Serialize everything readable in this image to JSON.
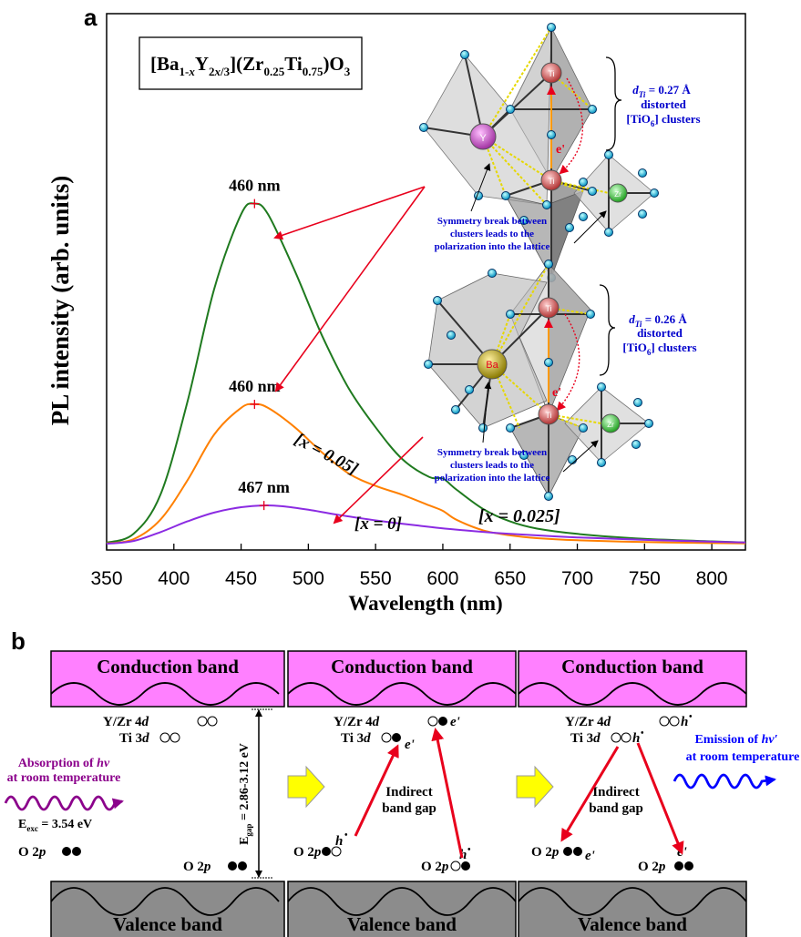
{
  "panel_a": {
    "label": "a",
    "formula": {
      "p1": "[Ba",
      "s1": "1-",
      "s1i": "x",
      "p2": "Y",
      "s2": "2",
      "s2i": "x",
      "s2b": "/3",
      "p3": "](Zr",
      "s3": "0.25",
      "p4": "Ti",
      "s4": "0.75",
      "p5": ")O",
      "s5": "3"
    },
    "peak_labels": [
      "460 nm",
      "460 nm",
      "467 nm"
    ],
    "series_labels": [
      "[x = 0.05]",
      "[x = 0]",
      "[x = 0.025]"
    ],
    "struct_top": {
      "atoms": {
        "y": "Y",
        "ti": "Ti",
        "zr": "Zr",
        "e": "e'"
      },
      "d_label": "d",
      "d_sub": "Ti",
      "d_value": " = 0.27 Å",
      "distorted": "distorted",
      "clusters_pre": "[TiO",
      "clusters_sub": "6",
      "clusters_post": "] clusters",
      "caption": [
        "Symmetry break between",
        "clusters leads to the",
        "polarization into the lattice"
      ]
    },
    "struct_bottom": {
      "atoms": {
        "ba": "Ba",
        "ti": "Ti",
        "zr": "Zr",
        "e": "e'"
      },
      "d_label": "d",
      "d_sub": "Ti",
      "d_value": " = 0.26 Å",
      "distorted": "distorted",
      "clusters_pre": "[TiO",
      "clusters_sub": "6",
      "clusters_post": "] clusters",
      "caption": [
        "Symmetry break between",
        "clusters leads to the",
        "polarization into the lattice"
      ]
    }
  },
  "chart_data": {
    "type": "line",
    "xlabel": "Wavelength (nm)",
    "ylabel": "PL intensity (arb. units)",
    "xlim": [
      350,
      825
    ],
    "xticks": [
      350,
      400,
      450,
      500,
      550,
      600,
      650,
      700,
      750,
      800
    ],
    "series": [
      {
        "name": "[x = 0.025]",
        "color": "#1f7a1f",
        "x": [
          350,
          370,
          390,
          410,
          430,
          450,
          460,
          470,
          490,
          510,
          530,
          550,
          570,
          590,
          600,
          610,
          630,
          650,
          670,
          700,
          750,
          800,
          825
        ],
        "y": [
          0.5,
          3,
          14,
          40,
          72,
          93,
          96,
          93,
          77,
          59,
          44,
          33,
          24,
          19,
          18.6,
          15.5,
          10,
          6.5,
          4.5,
          3,
          1.6,
          0.9,
          0.6
        ]
      },
      {
        "name": "[x = 0.05]",
        "color": "#ff8000",
        "x": [
          350,
          370,
          390,
          410,
          430,
          450,
          460,
          470,
          490,
          510,
          530,
          550,
          570,
          590,
          600,
          610,
          630,
          650,
          670,
          700,
          750,
          800,
          825
        ],
        "y": [
          0.3,
          1.5,
          7,
          18,
          31,
          38.5,
          39.5,
          38.5,
          33,
          26,
          20,
          16.5,
          14,
          11,
          9.5,
          7,
          4,
          2.6,
          1.8,
          1.2,
          0.7,
          0.4,
          0.3
        ]
      },
      {
        "name": "[x = 0]",
        "color": "#8b2be2",
        "x": [
          350,
          370,
          390,
          410,
          430,
          450,
          467,
          480,
          500,
          520,
          550,
          580,
          610,
          650,
          700,
          750,
          800,
          825
        ],
        "y": [
          0.2,
          1,
          3.5,
          6.5,
          9,
          10.5,
          11,
          10.8,
          9.8,
          8.5,
          6.8,
          5.4,
          4.2,
          3,
          2,
          1.3,
          0.8,
          0.6
        ]
      }
    ],
    "peaks": [
      {
        "x": 460,
        "y": 96,
        "label": "460 nm"
      },
      {
        "x": 460,
        "y": 39.5,
        "label": "460 nm"
      },
      {
        "x": 467,
        "y": 11,
        "label": "467 nm"
      }
    ]
  },
  "panel_b": {
    "label": "b",
    "conduction_band": "Conduction band",
    "valence_band": "Valence band",
    "p1": {
      "yzr": "Y/Zr 4",
      "d": "d",
      "ti": "Ti 3",
      "o2p": "O 2",
      "p": "p"
    },
    "p2": {
      "yzr": "Y/Zr 4",
      "d": "d",
      "ti": "Ti 3",
      "indirect": [
        "Indirect",
        "band gap"
      ],
      "o2p": "O 2",
      "p": "p",
      "e": "e'",
      "h": "h"
    },
    "p3": {
      "yzr": "Y/Zr 4",
      "d": "d",
      "ti": "Ti 3",
      "indirect": [
        "Indirect",
        "band gap"
      ],
      "o2p": "O 2",
      "p": "p",
      "e": "e'",
      "h": "h"
    },
    "absorption": [
      "Absorption of ",
      "hν",
      "at room temperature"
    ],
    "eexc": [
      "E",
      "exc",
      " = 3.54 eV"
    ],
    "o2p_left": [
      "O 2",
      "p"
    ],
    "egap": [
      "E",
      "gap",
      " = 2.86-3.12 eV"
    ],
    "emission": [
      "Emission of ",
      "hν′",
      "at room temperature"
    ],
    "colors": {
      "band_fill": "#ff80ff",
      "valence_fill": "#8c8c8c",
      "arrow_red": "#e8001c",
      "arrow_yellow": "#ffff00"
    }
  }
}
